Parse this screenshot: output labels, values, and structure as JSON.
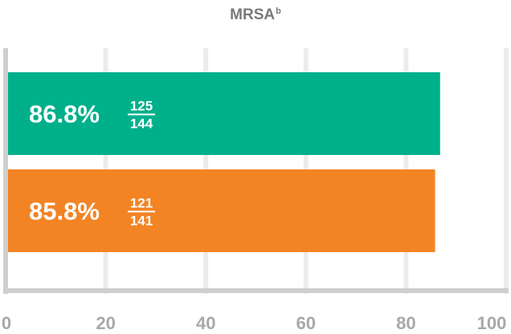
{
  "chart_data": {
    "type": "bar",
    "orientation": "horizontal",
    "title": "MRSA",
    "title_superscript": "b",
    "xlim": [
      0,
      100
    ],
    "ticks": [
      0,
      20,
      40,
      60,
      80,
      100
    ],
    "tick_labels": [
      "0",
      "20",
      "40",
      "60",
      "80",
      "100"
    ],
    "grid": true,
    "bars": [
      {
        "value": 86.8,
        "label": "86.8%",
        "numerator": "125",
        "denominator": "144",
        "color": "#00b08b"
      },
      {
        "value": 85.8,
        "label": "85.8%",
        "numerator": "121",
        "denominator": "141",
        "color": "#f28424"
      }
    ]
  }
}
